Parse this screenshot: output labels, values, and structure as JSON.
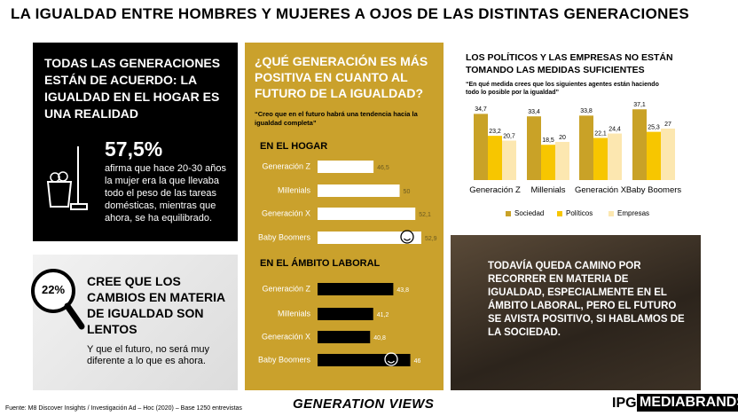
{
  "title": "LA IGUALDAD ENTRE HOMBRES Y MUJERES A OJOS DE LAS DISTINTAS GENERACIONES",
  "panel_hogar": {
    "heading": "TODAS LAS GENERACIONES ESTÁN DE ACUERDO: LA IGUALDAD EN EL HOGAR ES UNA REALIDAD",
    "stat": "57,5%",
    "text": "afirma que hace 20-30 años la mujer era la que llevaba todo el peso de las tareas domésticas, mientras que ahora, se ha equilibrado."
  },
  "panel_lentos": {
    "stat": "22%",
    "heading": "CREE QUE LOS CAMBIOS EN MATERIA DE IGUALDAD SON LENTOS",
    "text": "Y que el futuro, no será muy diferente a lo que es ahora."
  },
  "panel_futuro": {
    "heading": "¿QUÉ GENERACIÓN ES MÁS POSITIVA EN CUANTO AL FUTURO DE LA IGUALDAD?",
    "subtitle": "“Creo que en el futuro habrá una tendencia hacia la igualdad completa”"
  },
  "panel_camino": {
    "text": "TODAVÍA QUEDA CAMINO POR RECORRER EN MATERIA DE IGUALDAD, ESPECIALMENTE EN EL ÁMBITO LABORAL, PERO EL FUTURO SE AVISTA POSITIVO, SI HABLAMOS DE LA SOCIEDAD."
  },
  "chart_data": [
    {
      "type": "hbar",
      "title": "EN EL HOGAR",
      "categories": [
        "Generación Z",
        "Millenials",
        "Generación X",
        "Baby Boomers"
      ],
      "values": [
        46.5,
        50,
        52.1,
        52.9
      ],
      "value_labels": [
        "46,5",
        "50",
        "52,1",
        "52,9"
      ],
      "color": "#ffffff",
      "xlim": [
        39,
        53.5
      ]
    },
    {
      "type": "hbar",
      "title": "EN EL ÁMBITO LABORAL",
      "categories": [
        "Generación Z",
        "Millenials",
        "Generación X",
        "Baby Boomers"
      ],
      "values": [
        43.8,
        41.2,
        40.8,
        46
      ],
      "value_labels": [
        "43,8",
        "41,2",
        "40,8",
        "46"
      ],
      "color": "#000000",
      "xlim": [
        34,
        48
      ]
    },
    {
      "type": "bar",
      "title": "LOS POLÍTICOS Y LAS EMPRESAS NO ESTÁN TOMANDO LAS MEDIDAS SUFICIENTES",
      "subtitle": "“En qué medida crees que los siguientes agentes están haciendo todo lo posible por la igualdad”",
      "categories": [
        "Generación Z",
        "Millenials",
        "Generación X",
        "Baby Boomers"
      ],
      "series": [
        {
          "name": "Sociedad",
          "color": "#c9a227",
          "values": [
            34.7,
            33.4,
            33.8,
            37.1
          ],
          "value_labels": [
            "34,7",
            "33,4",
            "33,8",
            "37,1"
          ]
        },
        {
          "name": "Políticos",
          "color": "#f7c600",
          "values": [
            23.2,
            18.5,
            22.1,
            25.3
          ],
          "value_labels": [
            "23,2",
            "18,5",
            "22,1",
            "25,3"
          ]
        },
        {
          "name": "Empresas",
          "color": "#fce7b0",
          "values": [
            20.7,
            20,
            24.4,
            27
          ],
          "value_labels": [
            "20,7",
            "20",
            "24,4",
            "27"
          ]
        }
      ],
      "ylim": [
        0,
        40
      ],
      "legend": "bottom"
    }
  ],
  "footer": {
    "source": "Fuente: M8 Discover Insights / Investigación Ad – Hoc (2020) – Base 1250 entrevistas",
    "brand": "GENERATION VIEWS",
    "logo_left": "IPG",
    "logo_right": "MEDIABRANDS"
  }
}
